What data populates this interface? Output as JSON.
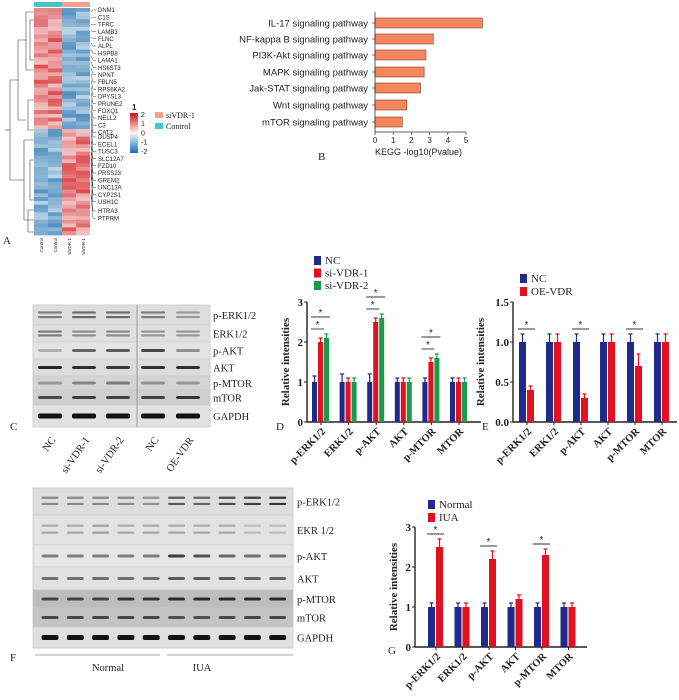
{
  "panel_labels": {
    "a": "A",
    "b": "B",
    "c": "C",
    "d": "D",
    "e": "E",
    "f": "F",
    "g": "G"
  },
  "heatmap": {
    "column_labels": [
      "Control",
      "Control",
      "siVDR-1",
      "siVDR-1"
    ],
    "genes": [
      "DNM1",
      "C1S",
      "TFRC",
      "LAMB3",
      "FLNC",
      "ALPL",
      "HSPB8",
      "LAMA1",
      "HS6ST3",
      "NPNT",
      "FBLN5",
      "RPS6KA2",
      "DPYSL3",
      "PRUNE2",
      "FOXQ1",
      "NELL2",
      "C3",
      "CAT2",
      "DUSP4",
      "ECEL1",
      "TUSC3",
      "SLC12A7",
      "FZD10",
      "PRSS23",
      "GREM2",
      "UNC13A",
      "CYP2S1",
      "USH1C",
      "HTRA3",
      "PTPRM"
    ],
    "scale_title": "1",
    "scale_ticks": [
      "2",
      "1",
      "0",
      "-1",
      "-2"
    ],
    "legend": [
      {
        "label": "siVDR-1",
        "color": "#f4a08a"
      },
      {
        "label": "Control",
        "color": "#3ec7c9"
      }
    ],
    "colors": {
      "high": "#d7191c",
      "mid": "#f7f7f7",
      "low": "#2c7bb6"
    }
  },
  "blot_c": {
    "rows": [
      "p-ERK1/2",
      "ERK1/2",
      "p-AKT",
      "AKT",
      "p-MTOR",
      "mTOR",
      "GAPDH"
    ],
    "lanes": [
      "NC",
      "si-VDR-1",
      "si-VDR-2",
      "NC",
      "OE-VDR"
    ]
  },
  "blot_f": {
    "rows": [
      "p-ERK1/2",
      "EKR 1/2",
      "p-AKT",
      "AKT",
      "p-MTOR",
      "mTOR",
      "GAPDH"
    ],
    "groups": [
      "Normal",
      "IUA"
    ]
  },
  "chart_data": [
    {
      "id": "B",
      "type": "bar",
      "orientation": "horizontal",
      "categories": [
        "IL-17 signaling pathway",
        "NF-kappa B signaling pathway",
        "PI3K-Akt signaling pathway",
        "MAPK signaling pathway",
        "Jak-STAT signaling pathway",
        "Wnt signaling pathway",
        "mTOR signaling pathway"
      ],
      "values": [
        5.9,
        3.2,
        2.8,
        2.7,
        2.5,
        1.75,
        1.5
      ],
      "xlabel": "KEGG  -log10(Pvalue)",
      "xlim": [
        0,
        6
      ],
      "xticks": [
        "0",
        "1",
        "2",
        "3",
        "4",
        "5"
      ],
      "color": "#f4875e"
    },
    {
      "id": "D",
      "type": "bar",
      "categories": [
        "p-ERK1/2",
        "ERK1/2",
        "p-AKT",
        "AKT",
        "p-MTOR",
        "MTOR"
      ],
      "ylabel": "Relative intensities",
      "ylim": [
        0,
        3
      ],
      "yticks": [
        "0",
        "1",
        "2",
        "3"
      ],
      "legend_position": "top-left",
      "series": [
        {
          "name": "NC",
          "color": "#1f2a8c",
          "values": [
            1,
            1,
            1,
            1,
            1,
            1
          ],
          "errors": [
            0.15,
            0.2,
            0.2,
            0.1,
            0.1,
            0.1
          ]
        },
        {
          "name": "si-VDR-1",
          "color": "#e3101f",
          "values": [
            2.0,
            1,
            2.5,
            1,
            1.5,
            1
          ],
          "errors": [
            0.1,
            0.1,
            0.1,
            0.1,
            0.1,
            0.1
          ]
        },
        {
          "name": "si-VDR-2",
          "color": "#1a9b4a",
          "values": [
            2.1,
            1,
            2.6,
            1,
            1.6,
            1
          ],
          "errors": [
            0.1,
            0.1,
            0.1,
            0.1,
            0.1,
            0.1
          ]
        }
      ],
      "significance": [
        {
          "category": 0,
          "from": 0,
          "to": 1,
          "label": "*"
        },
        {
          "category": 0,
          "from": 0,
          "to": 2,
          "label": "*"
        },
        {
          "category": 2,
          "from": 0,
          "to": 1,
          "label": "*"
        },
        {
          "category": 2,
          "from": 0,
          "to": 2,
          "label": "*"
        },
        {
          "category": 4,
          "from": 0,
          "to": 1,
          "label": "*"
        },
        {
          "category": 4,
          "from": 0,
          "to": 2,
          "label": "*"
        }
      ]
    },
    {
      "id": "E",
      "type": "bar",
      "categories": [
        "p-ERK1/2",
        "ERK1/2",
        "p-AKT",
        "AKT",
        "p-MTOR",
        "MTOR"
      ],
      "ylabel": "Relative intensities",
      "ylim": [
        0,
        1.5
      ],
      "yticks": [
        "0.0",
        "0.5",
        "1.0",
        "1.5"
      ],
      "legend_position": "top-left",
      "series": [
        {
          "name": "NC",
          "color": "#1f2a8c",
          "values": [
            1,
            1,
            1,
            1,
            1,
            1
          ],
          "errors": [
            0.1,
            0.1,
            0.1,
            0.1,
            0.1,
            0.1
          ]
        },
        {
          "name": "OE-VDR",
          "color": "#e3101f",
          "values": [
            0.4,
            1,
            0.3,
            1,
            0.7,
            1
          ],
          "errors": [
            0.05,
            0.1,
            0.05,
            0.1,
            0.15,
            0.1
          ]
        }
      ],
      "significance": [
        {
          "category": 0,
          "from": 0,
          "to": 1,
          "label": "*"
        },
        {
          "category": 2,
          "from": 0,
          "to": 1,
          "label": "*"
        },
        {
          "category": 4,
          "from": 0,
          "to": 1,
          "label": "*"
        }
      ]
    },
    {
      "id": "G",
      "type": "bar",
      "categories": [
        "p-ERK1/2",
        "ERK1/2",
        "p-AKT",
        "AKT",
        "p-MTOR",
        "MTOR"
      ],
      "ylabel": "Relative intensities",
      "ylim": [
        0,
        3
      ],
      "yticks": [
        "0",
        "1",
        "2",
        "3"
      ],
      "legend_position": "top-left",
      "series": [
        {
          "name": "Normal",
          "color": "#1f2a8c",
          "values": [
            1,
            1,
            1,
            1,
            1,
            1
          ],
          "errors": [
            0.1,
            0.1,
            0.1,
            0.1,
            0.1,
            0.1
          ]
        },
        {
          "name": "IUA",
          "color": "#e3101f",
          "values": [
            2.5,
            1,
            2.2,
            1.2,
            2.3,
            1
          ],
          "errors": [
            0.2,
            0.1,
            0.2,
            0.1,
            0.15,
            0.1
          ]
        }
      ],
      "significance": [
        {
          "category": 0,
          "from": 0,
          "to": 1,
          "label": "*"
        },
        {
          "category": 2,
          "from": 0,
          "to": 1,
          "label": "*"
        },
        {
          "category": 4,
          "from": 0,
          "to": 1,
          "label": "*"
        }
      ]
    }
  ]
}
